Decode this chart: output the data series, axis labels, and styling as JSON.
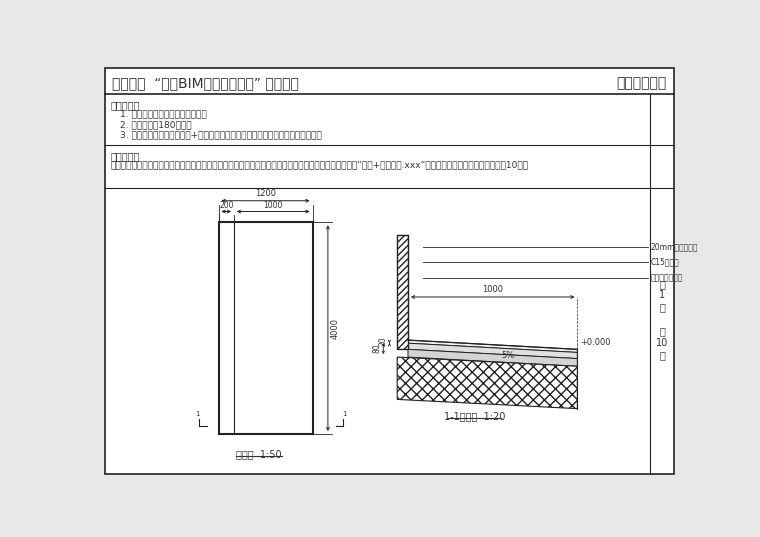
{
  "title_left": "第十六期  “全国BIM技能等级考试” 一级试题",
  "title_right": "中国图学学会",
  "exam_req_title": "考试要求：",
  "exam_req_items": [
    "1. 考试方式：计算机操作，闭卷；",
    "2. 考试时间为180分钟；",
    "3. 新建文件夹（以准考证号+姓名命名），用于存放本次考试中生成的全部文件。"
  ],
  "problem_title": "试题部分：",
  "problem_text": "一、根据给定尺寸建立墙与水泥砂浆散水模型，地形尺寸自定义，未标明尺寸不作要求，请将模型文件以“散水+考生姓名.xxx”为文件名保存到考生文件夹中。（10分）",
  "plan_label": "平面图  1:50",
  "section_label": "1-1剖面图  1:20",
  "page_label1": "第",
  "page_num": "1",
  "page_label2": "页",
  "total_label": "共",
  "total_num": "10",
  "total_label2": "页",
  "layer1": "20mm厚水泥砂浆",
  "layer2": "C15混凝土",
  "layer3": "碎石垫层夯上实",
  "slope_label": "5%",
  "elevation": "+0.000",
  "dim_1200": "1200",
  "dim_1000_plan": "1000",
  "dim_200": "200",
  "dim_4000": "4000",
  "dim_1000_sec": "1000",
  "dim_80": "80",
  "dim_20": "20",
  "bg_color": "#e8e8e8",
  "paper_color": "#ffffff",
  "line_color": "#222222",
  "text_color": "#333333",
  "light_gray": "#cccccc"
}
